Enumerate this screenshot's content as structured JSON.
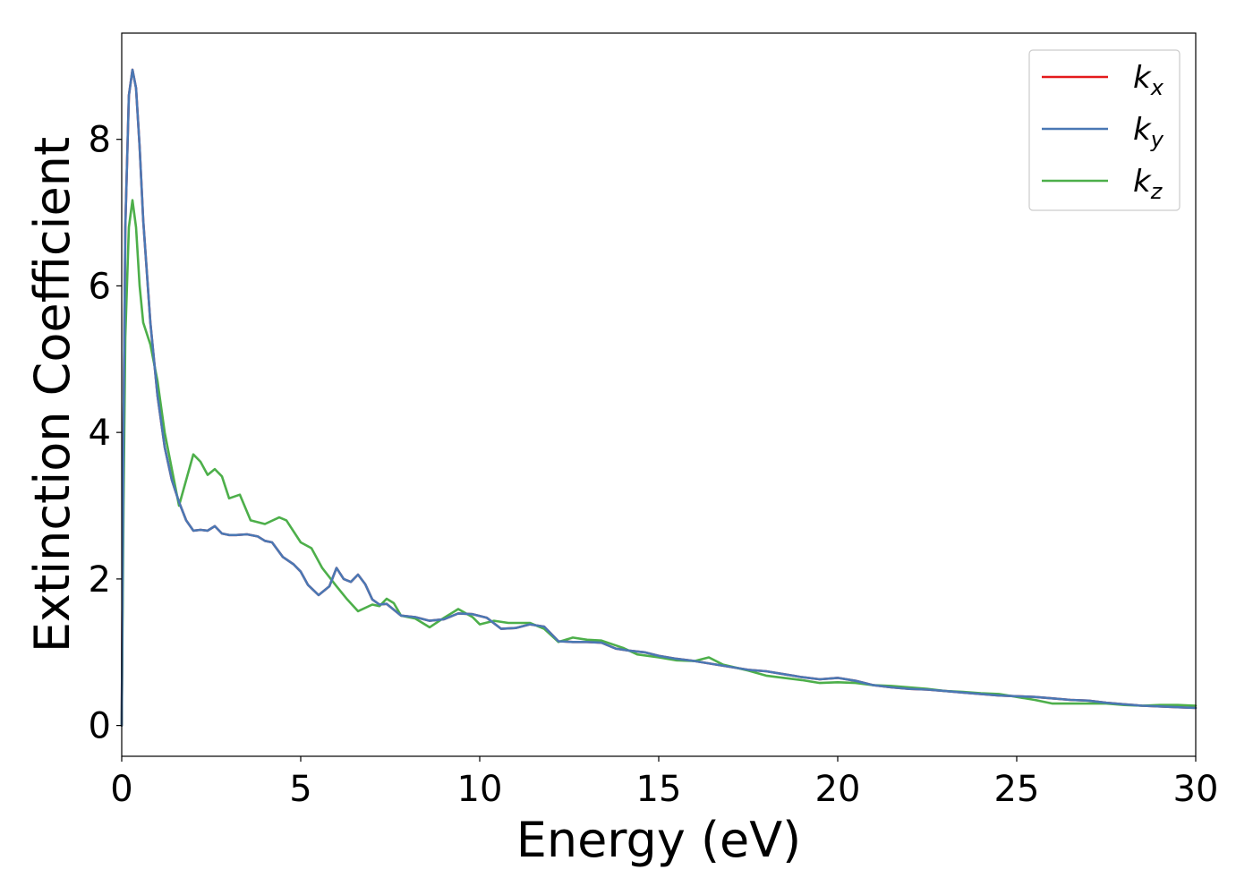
{
  "chart_data": {
    "type": "line",
    "xlabel": "Energy (eV)",
    "ylabel": "Extinction Coefficient",
    "xlim": [
      0,
      30
    ],
    "ylim": [
      -0.42,
      9.45
    ],
    "xticks": [
      0,
      5,
      10,
      15,
      20,
      25,
      30
    ],
    "xtick_labels": [
      "0",
      "5",
      "10",
      "15",
      "20",
      "25",
      "30"
    ],
    "yticks": [
      0,
      2,
      4,
      6,
      8
    ],
    "ytick_labels": [
      "0",
      "2",
      "4",
      "6",
      "8"
    ],
    "grid": false,
    "legend_position": "top-right",
    "series": [
      {
        "name": "k_x",
        "label_main": "k",
        "label_sub": "x",
        "color": "#e41a1c",
        "points": [
          [
            0,
            0
          ],
          [
            0.05,
            4.0
          ],
          [
            0.1,
            6.8
          ],
          [
            0.2,
            8.6
          ],
          [
            0.3,
            8.95
          ],
          [
            0.4,
            8.7
          ],
          [
            0.5,
            7.9
          ],
          [
            0.6,
            6.9
          ],
          [
            0.8,
            5.5
          ],
          [
            1.0,
            4.5
          ],
          [
            1.2,
            3.8
          ],
          [
            1.4,
            3.35
          ],
          [
            1.6,
            3.05
          ],
          [
            1.8,
            2.8
          ],
          [
            2.0,
            2.66
          ],
          [
            2.2,
            2.67
          ],
          [
            2.4,
            2.66
          ],
          [
            2.6,
            2.72
          ],
          [
            2.8,
            2.62
          ],
          [
            3.0,
            2.6
          ],
          [
            3.2,
            2.6
          ],
          [
            3.5,
            2.61
          ],
          [
            3.8,
            2.58
          ],
          [
            4.0,
            2.52
          ],
          [
            4.2,
            2.5
          ],
          [
            4.5,
            2.3
          ],
          [
            4.8,
            2.2
          ],
          [
            5.0,
            2.1
          ],
          [
            5.2,
            1.92
          ],
          [
            5.5,
            1.78
          ],
          [
            5.8,
            1.9
          ],
          [
            6.0,
            2.15
          ],
          [
            6.2,
            2.0
          ],
          [
            6.4,
            1.96
          ],
          [
            6.6,
            2.06
          ],
          [
            6.8,
            1.93
          ],
          [
            7.0,
            1.72
          ],
          [
            7.2,
            1.65
          ],
          [
            7.4,
            1.66
          ],
          [
            7.8,
            1.5
          ],
          [
            8.2,
            1.48
          ],
          [
            8.6,
            1.43
          ],
          [
            9.0,
            1.45
          ],
          [
            9.4,
            1.53
          ],
          [
            9.8,
            1.52
          ],
          [
            10.2,
            1.47
          ],
          [
            10.6,
            1.32
          ],
          [
            11.0,
            1.33
          ],
          [
            11.4,
            1.38
          ],
          [
            11.8,
            1.35
          ],
          [
            12.2,
            1.15
          ],
          [
            12.6,
            1.14
          ],
          [
            13.0,
            1.14
          ],
          [
            13.4,
            1.13
          ],
          [
            13.8,
            1.05
          ],
          [
            14.2,
            1.02
          ],
          [
            14.6,
            1.0
          ],
          [
            15.0,
            0.95
          ],
          [
            15.5,
            0.91
          ],
          [
            16.0,
            0.88
          ],
          [
            16.5,
            0.84
          ],
          [
            17.0,
            0.8
          ],
          [
            17.5,
            0.76
          ],
          [
            18.0,
            0.74
          ],
          [
            18.5,
            0.7
          ],
          [
            19.0,
            0.66
          ],
          [
            19.5,
            0.63
          ],
          [
            20.0,
            0.65
          ],
          [
            20.5,
            0.61
          ],
          [
            21.0,
            0.55
          ],
          [
            21.5,
            0.52
          ],
          [
            22.0,
            0.5
          ],
          [
            22.5,
            0.49
          ],
          [
            23.0,
            0.47
          ],
          [
            23.5,
            0.45
          ],
          [
            24.0,
            0.43
          ],
          [
            24.5,
            0.41
          ],
          [
            25.0,
            0.4
          ],
          [
            25.5,
            0.39
          ],
          [
            26.0,
            0.37
          ],
          [
            26.5,
            0.35
          ],
          [
            27.0,
            0.34
          ],
          [
            27.5,
            0.31
          ],
          [
            28.0,
            0.29
          ],
          [
            28.5,
            0.27
          ],
          [
            29.0,
            0.26
          ],
          [
            29.5,
            0.25
          ],
          [
            30.0,
            0.24
          ]
        ]
      },
      {
        "name": "k_y",
        "label_main": "k",
        "label_sub": "y",
        "color": "#4a78b4",
        "points": [
          [
            0,
            0
          ],
          [
            0.05,
            4.0
          ],
          [
            0.1,
            6.8
          ],
          [
            0.2,
            8.6
          ],
          [
            0.3,
            8.95
          ],
          [
            0.4,
            8.7
          ],
          [
            0.5,
            7.9
          ],
          [
            0.6,
            6.9
          ],
          [
            0.8,
            5.5
          ],
          [
            1.0,
            4.5
          ],
          [
            1.2,
            3.8
          ],
          [
            1.4,
            3.35
          ],
          [
            1.6,
            3.05
          ],
          [
            1.8,
            2.8
          ],
          [
            2.0,
            2.66
          ],
          [
            2.2,
            2.67
          ],
          [
            2.4,
            2.66
          ],
          [
            2.6,
            2.72
          ],
          [
            2.8,
            2.62
          ],
          [
            3.0,
            2.6
          ],
          [
            3.2,
            2.6
          ],
          [
            3.5,
            2.61
          ],
          [
            3.8,
            2.58
          ],
          [
            4.0,
            2.52
          ],
          [
            4.2,
            2.5
          ],
          [
            4.5,
            2.3
          ],
          [
            4.8,
            2.2
          ],
          [
            5.0,
            2.1
          ],
          [
            5.2,
            1.92
          ],
          [
            5.5,
            1.78
          ],
          [
            5.8,
            1.9
          ],
          [
            6.0,
            2.15
          ],
          [
            6.2,
            2.0
          ],
          [
            6.4,
            1.96
          ],
          [
            6.6,
            2.06
          ],
          [
            6.8,
            1.93
          ],
          [
            7.0,
            1.72
          ],
          [
            7.2,
            1.65
          ],
          [
            7.4,
            1.66
          ],
          [
            7.8,
            1.5
          ],
          [
            8.2,
            1.48
          ],
          [
            8.6,
            1.43
          ],
          [
            9.0,
            1.45
          ],
          [
            9.4,
            1.53
          ],
          [
            9.8,
            1.52
          ],
          [
            10.2,
            1.47
          ],
          [
            10.6,
            1.32
          ],
          [
            11.0,
            1.33
          ],
          [
            11.4,
            1.38
          ],
          [
            11.8,
            1.35
          ],
          [
            12.2,
            1.15
          ],
          [
            12.6,
            1.14
          ],
          [
            13.0,
            1.14
          ],
          [
            13.4,
            1.13
          ],
          [
            13.8,
            1.05
          ],
          [
            14.2,
            1.02
          ],
          [
            14.6,
            1.0
          ],
          [
            15.0,
            0.95
          ],
          [
            15.5,
            0.91
          ],
          [
            16.0,
            0.88
          ],
          [
            16.5,
            0.84
          ],
          [
            17.0,
            0.8
          ],
          [
            17.5,
            0.76
          ],
          [
            18.0,
            0.74
          ],
          [
            18.5,
            0.7
          ],
          [
            19.0,
            0.66
          ],
          [
            19.5,
            0.63
          ],
          [
            20.0,
            0.65
          ],
          [
            20.5,
            0.61
          ],
          [
            21.0,
            0.55
          ],
          [
            21.5,
            0.52
          ],
          [
            22.0,
            0.5
          ],
          [
            22.5,
            0.49
          ],
          [
            23.0,
            0.47
          ],
          [
            23.5,
            0.45
          ],
          [
            24.0,
            0.43
          ],
          [
            24.5,
            0.41
          ],
          [
            25.0,
            0.4
          ],
          [
            25.5,
            0.39
          ],
          [
            26.0,
            0.37
          ],
          [
            26.5,
            0.35
          ],
          [
            27.0,
            0.34
          ],
          [
            27.5,
            0.31
          ],
          [
            28.0,
            0.29
          ],
          [
            28.5,
            0.27
          ],
          [
            29.0,
            0.26
          ],
          [
            29.5,
            0.25
          ],
          [
            30.0,
            0.24
          ]
        ]
      },
      {
        "name": "k_z",
        "label_main": "k",
        "label_sub": "z",
        "color": "#4daf4a",
        "points": [
          [
            0,
            0
          ],
          [
            0.05,
            3.0
          ],
          [
            0.1,
            5.3
          ],
          [
            0.2,
            6.8
          ],
          [
            0.3,
            7.17
          ],
          [
            0.4,
            6.8
          ],
          [
            0.5,
            6.0
          ],
          [
            0.6,
            5.5
          ],
          [
            0.8,
            5.2
          ],
          [
            1.0,
            4.7
          ],
          [
            1.2,
            4.0
          ],
          [
            1.4,
            3.5
          ],
          [
            1.6,
            3.0
          ],
          [
            1.8,
            3.35
          ],
          [
            2.0,
            3.7
          ],
          [
            2.2,
            3.6
          ],
          [
            2.4,
            3.42
          ],
          [
            2.6,
            3.5
          ],
          [
            2.8,
            3.4
          ],
          [
            3.0,
            3.1
          ],
          [
            3.3,
            3.15
          ],
          [
            3.6,
            2.8
          ],
          [
            4.0,
            2.75
          ],
          [
            4.4,
            2.84
          ],
          [
            4.6,
            2.8
          ],
          [
            5.0,
            2.5
          ],
          [
            5.3,
            2.42
          ],
          [
            5.6,
            2.15
          ],
          [
            6.0,
            1.9
          ],
          [
            6.3,
            1.72
          ],
          [
            6.6,
            1.56
          ],
          [
            7.0,
            1.65
          ],
          [
            7.2,
            1.63
          ],
          [
            7.4,
            1.73
          ],
          [
            7.6,
            1.67
          ],
          [
            7.8,
            1.5
          ],
          [
            8.2,
            1.46
          ],
          [
            8.6,
            1.34
          ],
          [
            9.0,
            1.47
          ],
          [
            9.4,
            1.59
          ],
          [
            9.8,
            1.48
          ],
          [
            10.0,
            1.38
          ],
          [
            10.4,
            1.43
          ],
          [
            10.8,
            1.4
          ],
          [
            11.4,
            1.4
          ],
          [
            11.8,
            1.32
          ],
          [
            12.2,
            1.14
          ],
          [
            12.6,
            1.2
          ],
          [
            13.0,
            1.17
          ],
          [
            13.4,
            1.16
          ],
          [
            14.0,
            1.06
          ],
          [
            14.4,
            0.97
          ],
          [
            15.0,
            0.93
          ],
          [
            15.5,
            0.89
          ],
          [
            16.0,
            0.88
          ],
          [
            16.4,
            0.93
          ],
          [
            16.8,
            0.83
          ],
          [
            17.5,
            0.75
          ],
          [
            18.0,
            0.68
          ],
          [
            18.5,
            0.65
          ],
          [
            19.0,
            0.62
          ],
          [
            19.5,
            0.58
          ],
          [
            20.0,
            0.59
          ],
          [
            20.5,
            0.58
          ],
          [
            21.0,
            0.55
          ],
          [
            21.5,
            0.54
          ],
          [
            22.0,
            0.52
          ],
          [
            22.5,
            0.5
          ],
          [
            23.0,
            0.47
          ],
          [
            23.5,
            0.46
          ],
          [
            24.0,
            0.44
          ],
          [
            24.5,
            0.43
          ],
          [
            25.0,
            0.39
          ],
          [
            25.5,
            0.35
          ],
          [
            26.0,
            0.3
          ],
          [
            26.5,
            0.3
          ],
          [
            27.0,
            0.3
          ],
          [
            27.5,
            0.3
          ],
          [
            28.0,
            0.28
          ],
          [
            28.5,
            0.27
          ],
          [
            29.0,
            0.28
          ],
          [
            29.5,
            0.28
          ],
          [
            30.0,
            0.27
          ]
        ]
      }
    ]
  }
}
